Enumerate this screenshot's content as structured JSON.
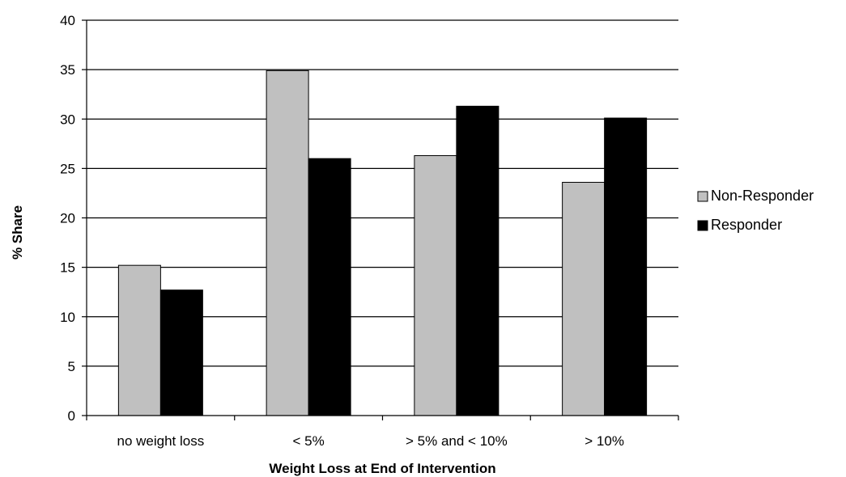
{
  "chart_data": {
    "type": "bar",
    "title": "",
    "xlabel": "Weight Loss at End of Intervention",
    "ylabel": "% Share",
    "categories": [
      "no weight loss",
      "< 5%",
      "> 5% and < 10%",
      "> 10%"
    ],
    "series": [
      {
        "name": "Non-Responder",
        "values": [
          15.2,
          34.9,
          26.3,
          23.6
        ],
        "color": "#c0c0c0"
      },
      {
        "name": "Responder",
        "values": [
          12.7,
          26.0,
          31.3,
          30.1
        ],
        "color": "#000000"
      }
    ],
    "ylim": [
      0,
      40
    ],
    "yticks": [
      0,
      5,
      10,
      15,
      20,
      25,
      30,
      35,
      40
    ],
    "grid": true,
    "legend": "right"
  }
}
